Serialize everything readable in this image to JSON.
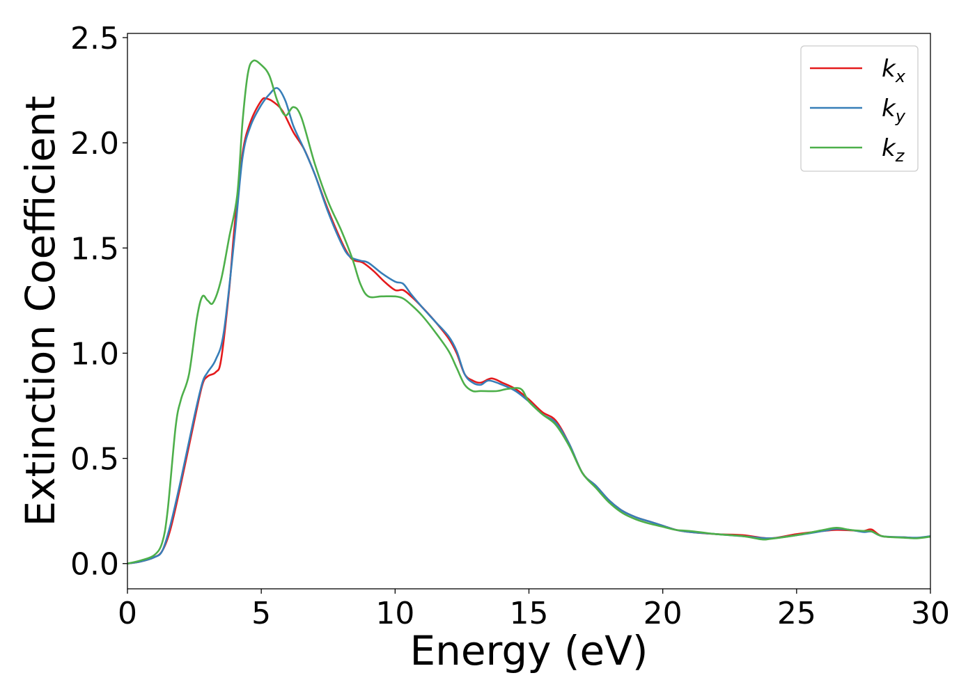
{
  "chart_data": {
    "type": "line",
    "xlabel": "Energy (eV)",
    "ylabel": "Extinction Coefficient",
    "xlim": [
      0,
      30
    ],
    "ylim": [
      -0.12,
      2.52
    ],
    "xticks": [
      0,
      5,
      10,
      15,
      20,
      25,
      30
    ],
    "xtick_labels": [
      "0",
      "5",
      "10",
      "15",
      "20",
      "25",
      "30"
    ],
    "yticks": [
      0.0,
      0.5,
      1.0,
      1.5,
      2.0,
      2.5
    ],
    "ytick_labels": [
      "0.0",
      "0.5",
      "1.0",
      "1.5",
      "2.0",
      "2.5"
    ],
    "grid": false,
    "legend_position": "top-right",
    "series": [
      {
        "name": "k_x",
        "legend_main": "k",
        "legend_sub": "x",
        "color": "#e41a1c",
        "points": [
          [
            0,
            0
          ],
          [
            0.5,
            0.01
          ],
          [
            1,
            0.03
          ],
          [
            1.3,
            0.06
          ],
          [
            1.6,
            0.16
          ],
          [
            2,
            0.38
          ],
          [
            2.5,
            0.68
          ],
          [
            2.8,
            0.85
          ],
          [
            3,
            0.89
          ],
          [
            3.3,
            0.91
          ],
          [
            3.5,
            0.97
          ],
          [
            3.8,
            1.3
          ],
          [
            4,
            1.6
          ],
          [
            4.3,
            1.95
          ],
          [
            4.6,
            2.1
          ],
          [
            5,
            2.2
          ],
          [
            5.2,
            2.21
          ],
          [
            5.5,
            2.19
          ],
          [
            5.8,
            2.15
          ],
          [
            6.2,
            2.05
          ],
          [
            6.6,
            1.97
          ],
          [
            7,
            1.85
          ],
          [
            7.5,
            1.68
          ],
          [
            8,
            1.53
          ],
          [
            8.3,
            1.46
          ],
          [
            8.5,
            1.44
          ],
          [
            8.8,
            1.43
          ],
          [
            9.2,
            1.39
          ],
          [
            9.6,
            1.34
          ],
          [
            10,
            1.3
          ],
          [
            10.3,
            1.3
          ],
          [
            10.6,
            1.27
          ],
          [
            11,
            1.22
          ],
          [
            11.5,
            1.15
          ],
          [
            12,
            1.07
          ],
          [
            12.3,
            1.0
          ],
          [
            12.6,
            0.9
          ],
          [
            12.9,
            0.87
          ],
          [
            13.2,
            0.86
          ],
          [
            13.6,
            0.88
          ],
          [
            14,
            0.86
          ],
          [
            14.5,
            0.83
          ],
          [
            15,
            0.78
          ],
          [
            15.5,
            0.72
          ],
          [
            16,
            0.68
          ],
          [
            16.5,
            0.57
          ],
          [
            17,
            0.43
          ],
          [
            17.5,
            0.37
          ],
          [
            18,
            0.3
          ],
          [
            18.5,
            0.25
          ],
          [
            19,
            0.22
          ],
          [
            19.5,
            0.2
          ],
          [
            20,
            0.18
          ],
          [
            20.5,
            0.16
          ],
          [
            21,
            0.15
          ],
          [
            22,
            0.14
          ],
          [
            23,
            0.135
          ],
          [
            24,
            0.12
          ],
          [
            25,
            0.14
          ],
          [
            26,
            0.155
          ],
          [
            26.5,
            0.16
          ],
          [
            27,
            0.158
          ],
          [
            27.5,
            0.155
          ],
          [
            27.8,
            0.162
          ],
          [
            28.2,
            0.13
          ],
          [
            29,
            0.125
          ],
          [
            29.5,
            0.122
          ],
          [
            30,
            0.13
          ]
        ]
      },
      {
        "name": "k_y",
        "legend_main": "k",
        "legend_sub": "y",
        "color": "#377eb8",
        "points": [
          [
            0,
            0
          ],
          [
            0.5,
            0.01
          ],
          [
            1,
            0.03
          ],
          [
            1.3,
            0.06
          ],
          [
            1.6,
            0.18
          ],
          [
            2,
            0.4
          ],
          [
            2.5,
            0.7
          ],
          [
            2.8,
            0.86
          ],
          [
            3,
            0.91
          ],
          [
            3.3,
            0.97
          ],
          [
            3.6,
            1.1
          ],
          [
            4,
            1.55
          ],
          [
            4.3,
            1.93
          ],
          [
            4.6,
            2.08
          ],
          [
            5,
            2.18
          ],
          [
            5.3,
            2.23
          ],
          [
            5.6,
            2.26
          ],
          [
            5.9,
            2.2
          ],
          [
            6.2,
            2.08
          ],
          [
            6.6,
            1.97
          ],
          [
            7,
            1.85
          ],
          [
            7.5,
            1.67
          ],
          [
            8,
            1.52
          ],
          [
            8.3,
            1.46
          ],
          [
            8.7,
            1.44
          ],
          [
            9,
            1.43
          ],
          [
            9.5,
            1.38
          ],
          [
            10,
            1.34
          ],
          [
            10.3,
            1.33
          ],
          [
            10.6,
            1.28
          ],
          [
            11,
            1.22
          ],
          [
            11.5,
            1.15
          ],
          [
            12,
            1.08
          ],
          [
            12.3,
            1.01
          ],
          [
            12.6,
            0.9
          ],
          [
            12.9,
            0.86
          ],
          [
            13.2,
            0.85
          ],
          [
            13.5,
            0.87
          ],
          [
            14,
            0.85
          ],
          [
            14.5,
            0.82
          ],
          [
            15,
            0.77
          ],
          [
            15.5,
            0.71
          ],
          [
            16,
            0.67
          ],
          [
            16.5,
            0.57
          ],
          [
            17,
            0.43
          ],
          [
            17.5,
            0.37
          ],
          [
            18,
            0.3
          ],
          [
            18.5,
            0.25
          ],
          [
            19,
            0.22
          ],
          [
            19.5,
            0.2
          ],
          [
            20,
            0.18
          ],
          [
            20.5,
            0.16
          ],
          [
            21,
            0.15
          ],
          [
            22,
            0.14
          ],
          [
            23,
            0.13
          ],
          [
            24,
            0.12
          ],
          [
            25,
            0.135
          ],
          [
            26,
            0.155
          ],
          [
            26.5,
            0.165
          ],
          [
            27,
            0.16
          ],
          [
            27.5,
            0.15
          ],
          [
            27.8,
            0.152
          ],
          [
            28.2,
            0.13
          ],
          [
            29,
            0.125
          ],
          [
            29.5,
            0.123
          ],
          [
            30,
            0.13
          ]
        ]
      },
      {
        "name": "k_z",
        "legend_main": "k",
        "legend_sub": "z",
        "color": "#4daf4a",
        "points": [
          [
            0,
            0
          ],
          [
            0.5,
            0.015
          ],
          [
            1,
            0.04
          ],
          [
            1.3,
            0.1
          ],
          [
            1.5,
            0.25
          ],
          [
            1.8,
            0.65
          ],
          [
            2,
            0.78
          ],
          [
            2.3,
            0.9
          ],
          [
            2.6,
            1.17
          ],
          [
            2.8,
            1.27
          ],
          [
            3,
            1.25
          ],
          [
            3.2,
            1.24
          ],
          [
            3.5,
            1.35
          ],
          [
            3.8,
            1.55
          ],
          [
            4.1,
            1.75
          ],
          [
            4.3,
            2.1
          ],
          [
            4.5,
            2.33
          ],
          [
            4.7,
            2.39
          ],
          [
            5,
            2.37
          ],
          [
            5.3,
            2.32
          ],
          [
            5.6,
            2.2
          ],
          [
            5.9,
            2.13
          ],
          [
            6.2,
            2.17
          ],
          [
            6.5,
            2.12
          ],
          [
            7,
            1.9
          ],
          [
            7.5,
            1.72
          ],
          [
            8,
            1.58
          ],
          [
            8.4,
            1.45
          ],
          [
            8.7,
            1.33
          ],
          [
            9,
            1.27
          ],
          [
            9.5,
            1.27
          ],
          [
            10,
            1.27
          ],
          [
            10.3,
            1.26
          ],
          [
            10.6,
            1.23
          ],
          [
            11,
            1.18
          ],
          [
            11.5,
            1.1
          ],
          [
            12,
            1.01
          ],
          [
            12.3,
            0.93
          ],
          [
            12.6,
            0.85
          ],
          [
            12.9,
            0.82
          ],
          [
            13.2,
            0.82
          ],
          [
            13.8,
            0.82
          ],
          [
            14.2,
            0.83
          ],
          [
            14.7,
            0.83
          ],
          [
            15,
            0.77
          ],
          [
            15.5,
            0.71
          ],
          [
            16,
            0.66
          ],
          [
            16.5,
            0.56
          ],
          [
            17,
            0.43
          ],
          [
            17.5,
            0.36
          ],
          [
            18,
            0.29
          ],
          [
            18.5,
            0.24
          ],
          [
            19,
            0.21
          ],
          [
            19.5,
            0.19
          ],
          [
            20,
            0.175
          ],
          [
            20.5,
            0.16
          ],
          [
            21,
            0.155
          ],
          [
            22,
            0.14
          ],
          [
            23,
            0.13
          ],
          [
            23.7,
            0.115
          ],
          [
            24,
            0.117
          ],
          [
            25,
            0.135
          ],
          [
            26,
            0.16
          ],
          [
            26.5,
            0.17
          ],
          [
            27,
            0.16
          ],
          [
            27.5,
            0.155
          ],
          [
            27.8,
            0.153
          ],
          [
            28.2,
            0.13
          ],
          [
            29,
            0.123
          ],
          [
            29.5,
            0.12
          ],
          [
            30,
            0.128
          ]
        ]
      }
    ]
  }
}
